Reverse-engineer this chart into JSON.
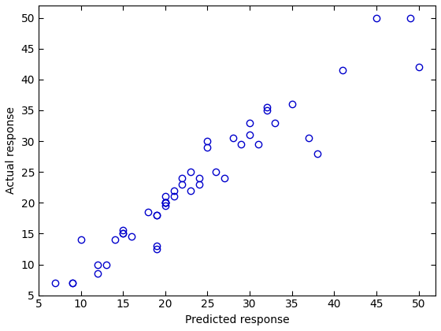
{
  "x": [
    7,
    9,
    9,
    10,
    12,
    12,
    13,
    14,
    15,
    15,
    15,
    16,
    18,
    19,
    19,
    19,
    19,
    20,
    20,
    20,
    20,
    20,
    20,
    21,
    21,
    22,
    22,
    23,
    23,
    24,
    24,
    25,
    25,
    26,
    27,
    28,
    29,
    30,
    30,
    31,
    32,
    32,
    33,
    35,
    37,
    38,
    41,
    45,
    49,
    50
  ],
  "y": [
    7,
    7,
    7,
    14,
    10,
    8.5,
    10,
    14,
    15,
    15,
    15.5,
    14.5,
    18.5,
    18,
    18,
    13,
    12.5,
    21,
    20,
    20,
    20,
    20,
    19.5,
    22,
    21,
    23,
    24,
    25,
    22,
    24,
    23,
    30,
    29,
    25,
    24,
    30.5,
    29.5,
    33,
    31,
    29.5,
    35.5,
    35,
    33,
    36,
    30.5,
    28,
    41.5,
    50,
    50,
    42
  ],
  "marker": "o",
  "marker_facecolor": "none",
  "marker_edgecolor": "#0000CC",
  "marker_size": 6,
  "marker_linewidth": 1.0,
  "xlabel": "Predicted response",
  "ylabel": "Actual response",
  "xlim": [
    5,
    52
  ],
  "ylim": [
    5,
    52
  ],
  "xticks": [
    5,
    10,
    15,
    20,
    25,
    30,
    35,
    40,
    45,
    50
  ],
  "yticks": [
    5,
    10,
    15,
    20,
    25,
    30,
    35,
    40,
    45,
    50
  ],
  "xlabel_fontsize": 10,
  "ylabel_fontsize": 10,
  "tick_fontsize": 10,
  "background_color": "#ffffff",
  "axes_facecolor": "#ffffff"
}
